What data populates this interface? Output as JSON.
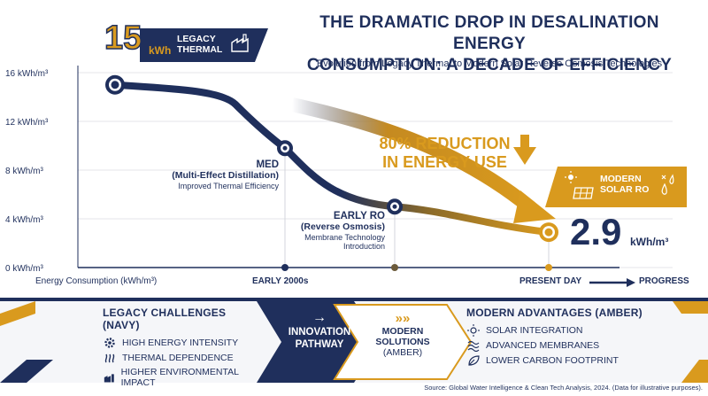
{
  "header": {
    "title_line1": "THE DRAMATIC DROP IN DESALINATION ENERGY",
    "title_line2": "CONSUMPTION: A DECADE OF EFFICIENCY",
    "subtitle": "Evolution from Legacy Thermal to Modern Solar Reverse Osmosis Technologies"
  },
  "colors": {
    "navy": "#1f2f5c",
    "amber": "#d99a1e",
    "grid": "#c9ccd4"
  },
  "callouts": {
    "legacy": {
      "value": "15",
      "unit": "kWh",
      "label_line1": "LEGACY",
      "label_line2": "THERMAL",
      "icon": "factory-icon"
    },
    "med": {
      "title": "MED",
      "subtitle": "(Multi-Effect Distillation)",
      "note": "Improved Thermal Efficiency"
    },
    "early_ro": {
      "title": "EARLY RO",
      "subtitle": "(Reverse Osmosis)",
      "note_line1": "Membrane Technology",
      "note_line2": "Introduction"
    },
    "reduction": {
      "line1": "80% REDUCTION",
      "line2": "IN ENERGY USE"
    },
    "modern": {
      "label_line1": "MODERN",
      "label_line2": "SOLAR RO",
      "value": "2.9",
      "unit": "kWh/m³",
      "icon": "solar-panel-icon"
    }
  },
  "chart_data": {
    "type": "line",
    "ylabel": "Energy Consumption (kWh/m³)",
    "yticks": [
      "16 kWh/m³",
      "12 kWh/m³",
      "8 kWh/m³",
      "4 kWh/m³",
      "0 kWh/m³"
    ],
    "ylim": [
      0,
      16
    ],
    "x_tick_labels": [
      "EARLY 2000s",
      "PRESENT DAY"
    ],
    "x_progress_label": "PROGRESS",
    "series": [
      {
        "points": [
          {
            "label": "Legacy Thermal",
            "y": 15
          },
          {
            "label": "MED",
            "y": 9.8
          },
          {
            "label": "Early RO",
            "y": 5
          },
          {
            "label": "Modern Solar RO",
            "y": 2.9
          }
        ]
      }
    ],
    "grid": true
  },
  "footer": {
    "challenges_title": "LEGACY CHALLENGES (NAVY)",
    "challenges": [
      {
        "icon": "gear-icon",
        "label": "HIGH ENERGY INTENSITY"
      },
      {
        "icon": "heat-waves-icon",
        "label": "THERMAL DEPENDENCE"
      },
      {
        "icon": "factory-emission-icon",
        "label": "HIGHER ENVIRONMENTAL IMPACT"
      }
    ],
    "pathway_arrow": "→",
    "pathway_line1": "INNOVATION",
    "pathway_line2": "PATHWAY",
    "chevrons": "»»",
    "modern_line1": "MODERN",
    "modern_line2": "SOLUTIONS",
    "modern_line3": "(AMBER)",
    "advantages_title": "MODERN ADVANTAGES (AMBER)",
    "advantages": [
      {
        "icon": "sun-icon",
        "label": "SOLAR INTEGRATION"
      },
      {
        "icon": "membrane-icon",
        "label": "ADVANCED MEMBRANES"
      },
      {
        "icon": "leaf-icon",
        "label": "LOWER CARBON FOOTPRINT"
      }
    ],
    "source": "Source: Global Water Intelligence & Clean Tech Analysis, 2024. (Data for illustrative purposes)."
  }
}
